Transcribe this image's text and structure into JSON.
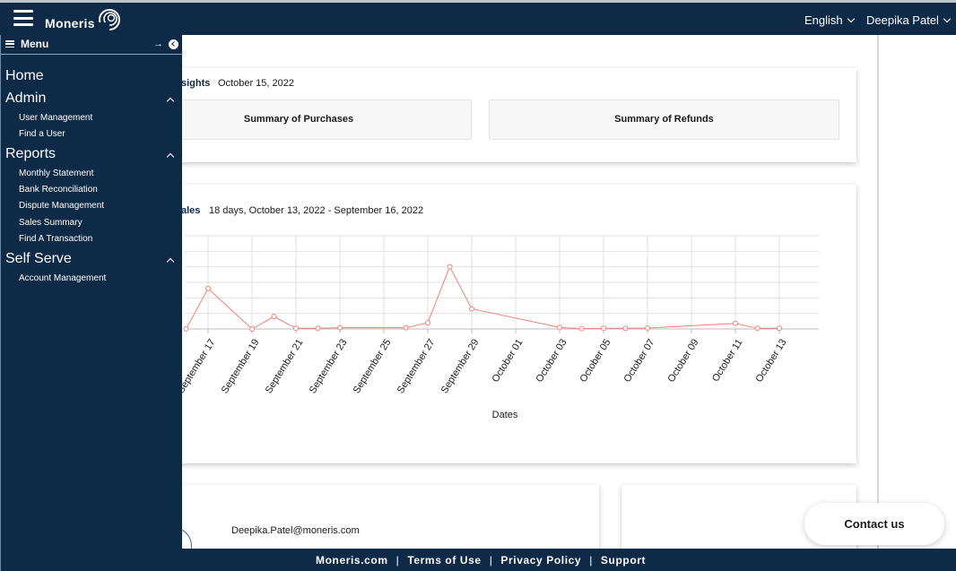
{
  "header": {
    "brand": "Moneris",
    "language": "English",
    "user_name": "Deepika Patel"
  },
  "sidebar": {
    "title": "Menu",
    "home": "Home",
    "sections": [
      {
        "label": "Admin",
        "items": [
          "User Management",
          "Find a User"
        ]
      },
      {
        "label": "Reports",
        "items": [
          "Monthly Statement",
          "Bank Reconciliation",
          "Dispute Management",
          "Sales Summary",
          "Find A Transaction"
        ]
      },
      {
        "label": "Self Serve",
        "items": [
          "Account Management"
        ]
      }
    ]
  },
  "insights": {
    "title_visible": "sights",
    "date": "October 15, 2022",
    "summary_purchases": "Summary of Purchases",
    "summary_refunds": "Summary of Refunds"
  },
  "sales": {
    "title_visible": "ales",
    "range": "18 days, October 13, 2022 - September 16, 2022"
  },
  "chart_data": {
    "type": "line",
    "xlabel": "Dates",
    "ylabel": "",
    "x_tick_labels": [
      "September 17",
      "September 19",
      "September 21",
      "September 23",
      "September 25",
      "September 27",
      "September 29",
      "October 01",
      "October 03",
      "October 05",
      "October 07",
      "October 09",
      "October 11",
      "October 13"
    ],
    "x": [
      "2022-09-16",
      "2022-09-17",
      "2022-09-19",
      "2022-09-20",
      "2022-09-21",
      "2022-09-22",
      "2022-09-23",
      "2022-09-26",
      "2022-09-27",
      "2022-09-28",
      "2022-09-29",
      "2022-10-03",
      "2022-10-04",
      "2022-10-05",
      "2022-10-06",
      "2022-10-07",
      "2022-10-11",
      "2022-10-12",
      "2022-10-13"
    ],
    "series": [
      {
        "color": "#f08073",
        "values": [
          0,
          1.3,
          0,
          0.4,
          0.02,
          0.02,
          0.04,
          0.04,
          0.2,
          2.0,
          0.65,
          0.05,
          0.01,
          0.02,
          0.02,
          0.03,
          0.18,
          0.02,
          0.02
        ]
      }
    ],
    "ylim": [
      0,
      3
    ],
    "grid": true,
    "legend": "none"
  },
  "profile": {
    "email": "Deepika.Patel@moneris.com"
  },
  "contact_label": "Contact us",
  "footer": {
    "links": [
      "Moneris.com",
      "Terms of Use",
      "Privacy Policy",
      "Support"
    ],
    "separator": "|"
  }
}
